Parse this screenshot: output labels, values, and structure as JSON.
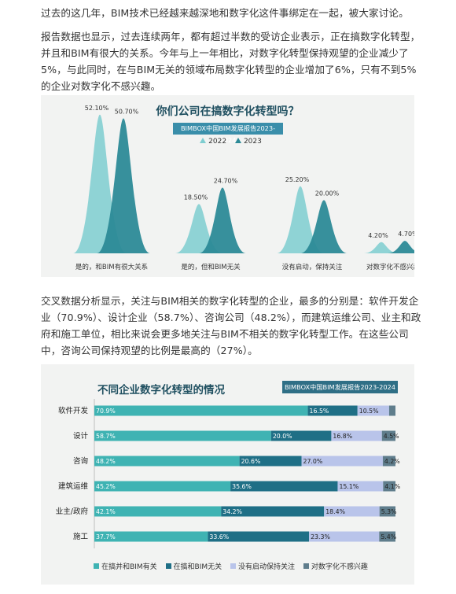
{
  "article": {
    "p1": "过去的这几年，BIM技术已经越来越深地和数字化这件事绑定在一起，被大家讨论。",
    "p2": "报告数据也显示，过去连续两年，都有超过半数的受访企业表示，正在搞数字化转型，并且和BIM有很大的关系。今年与上一年相比，对数字化转型保持观望的企业减少了5%，与此同时，在与BIM无关的领域布局数字化转型的企业增加了6%，只有不到5%的企业对数字化不感兴趣。",
    "p3": "交叉数据分析显示，关注与BIM相关的数字化转型的企业，最多的分别是：软件开发企业（70.9%）、设计企业（58.7%）、咨询公司（48.2%），而建筑运维公司、业主和政府和施工单位，相比来说会更多地关注与BIM不相关的数字化转型工作。在这些公司中，咨询公司保持观望的比例是最高的（27%）。"
  },
  "chart_data": [
    {
      "type": "area",
      "title": "你们公司在搞数字化转型吗？",
      "subtitle": "BIMBOX中国BIM发展报告2023-2024",
      "categories": [
        "是的，和BIM有很大关系",
        "是的，但和BIM无关",
        "没有启动，保持关注",
        "对数字化不感兴趣"
      ],
      "series": [
        {
          "name": "2022",
          "values": [
            52.1,
            18.5,
            25.2,
            4.2
          ],
          "labels": [
            "52.10%",
            "18.50%",
            "25.20%",
            "4.20%"
          ],
          "color": "#7ecdd0"
        },
        {
          "name": "2023",
          "values": [
            50.7,
            24.7,
            20.0,
            4.7
          ],
          "labels": [
            "50.70%",
            "24.70%",
            "20.00%",
            "4.70%"
          ],
          "color": "#2c8a97"
        }
      ],
      "ylim": [
        0,
        55
      ],
      "legend": "top-center"
    },
    {
      "type": "bar",
      "orientation": "horizontal-stacked",
      "title": "不同企业数字化转型的情况",
      "subtitle": "BIMBOX中国BIM发展报告2023-2024",
      "categories": [
        "软件开发",
        "设计",
        "咨询",
        "建筑运维",
        "业主/政府",
        "施工"
      ],
      "series": [
        {
          "name": "在搞并和BIM有关",
          "values": [
            70.9,
            58.7,
            48.2,
            45.2,
            42.1,
            37.7
          ],
          "labels": [
            "70.9%",
            "58.7%",
            "48.2%",
            "45.2%",
            "42.1%",
            "37.7%"
          ],
          "color": "#3fb3b3"
        },
        {
          "name": "在搞和BIM无关",
          "values": [
            16.5,
            20.0,
            20.6,
            35.6,
            34.2,
            33.6
          ],
          "labels": [
            "16.5%",
            "20.0%",
            "20.6%",
            "35.6%",
            "34.2%",
            "33.6%"
          ],
          "color": "#1f6f86"
        },
        {
          "name": "没有启动保持关注",
          "values": [
            10.5,
            16.8,
            27.0,
            15.1,
            18.4,
            23.3
          ],
          "labels": [
            "10.5%",
            "16.8%",
            "27.0%",
            "15.1%",
            "18.4%",
            "23.3%"
          ],
          "color": "#b9c4ea"
        },
        {
          "name": "对数字化不感兴趣",
          "values": [
            2.1,
            4.5,
            4.2,
            4.1,
            5.3,
            5.4
          ],
          "labels": [
            "",
            "4.5%",
            "4.2%",
            "4.1%",
            "5.3%",
            "5.4%"
          ],
          "color": "#5f7d8c"
        }
      ],
      "xlim": [
        0,
        100
      ],
      "legend": "bottom-center"
    }
  ]
}
